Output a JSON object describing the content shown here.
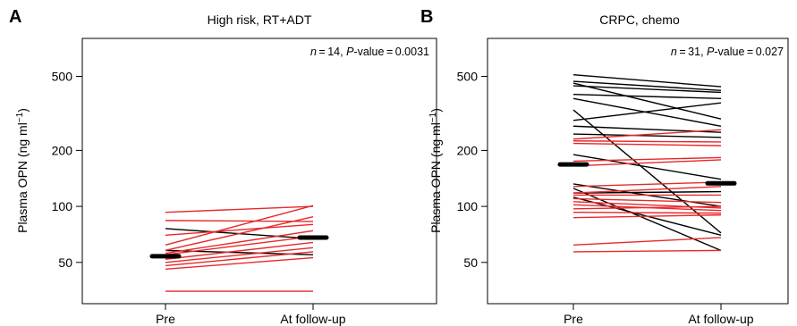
{
  "chart_data": [
    {
      "type": "line",
      "panel_label": "A",
      "title": "High risk, RT+ADT",
      "ylabel": "Plasma OPN (ng ml",
      "ylabel_sup": "−1",
      "ylabel_close": ")",
      "y_scale": "log",
      "ylim": [
        30,
        800
      ],
      "y_ticks": [
        50,
        100,
        200,
        500
      ],
      "categories": [
        "Pre",
        "At follow-up"
      ],
      "annotation": {
        "n_label": "n",
        "n_text": " = 14, ",
        "p_label": "P",
        "p_text": "-value = 0.0031"
      },
      "median": {
        "pre": 54,
        "post": 68
      },
      "series": [
        {
          "color": "#000000",
          "values": [
            58,
            55
          ]
        },
        {
          "color": "#000000",
          "values": [
            76,
            67
          ]
        },
        {
          "color": "#e8282a",
          "values": [
            93,
            100
          ]
        },
        {
          "color": "#e8282a",
          "values": [
            84,
            83
          ]
        },
        {
          "color": "#e8282a",
          "values": [
            70,
            80
          ]
        },
        {
          "color": "#e8282a",
          "values": [
            62,
            101
          ]
        },
        {
          "color": "#e8282a",
          "values": [
            58,
            88
          ]
        },
        {
          "color": "#e8282a",
          "values": [
            56,
            74
          ]
        },
        {
          "color": "#e8282a",
          "values": [
            55,
            69
          ]
        },
        {
          "color": "#e8282a",
          "values": [
            52,
            64
          ]
        },
        {
          "color": "#e8282a",
          "values": [
            50,
            60
          ]
        },
        {
          "color": "#e8282a",
          "values": [
            48,
            57
          ]
        },
        {
          "color": "#e8282a",
          "values": [
            46,
            53
          ]
        },
        {
          "color": "#e8282a",
          "values": [
            35,
            35
          ]
        }
      ]
    },
    {
      "type": "line",
      "panel_label": "B",
      "title": "CRPC, chemo",
      "ylabel": "Plasma OPN (ng ml",
      "ylabel_sup": "−1",
      "ylabel_close": ")",
      "y_scale": "log",
      "ylim": [
        30,
        800
      ],
      "y_ticks": [
        50,
        100,
        200,
        500
      ],
      "categories": [
        "Pre",
        "At follow-up"
      ],
      "annotation": {
        "n_label": "n",
        "n_text": " = 31, ",
        "p_label": "P",
        "p_text": "-value = 0.027"
      },
      "median": {
        "pre": 168,
        "post": 133
      },
      "series": [
        {
          "color": "#000000",
          "values": [
            510,
            440
          ]
        },
        {
          "color": "#000000",
          "values": [
            470,
            420
          ]
        },
        {
          "color": "#000000",
          "values": [
            460,
            295
          ]
        },
        {
          "color": "#000000",
          "values": [
            445,
            410
          ]
        },
        {
          "color": "#000000",
          "values": [
            400,
            380
          ]
        },
        {
          "color": "#000000",
          "values": [
            380,
            270
          ]
        },
        {
          "color": "#000000",
          "values": [
            330,
            72
          ]
        },
        {
          "color": "#000000",
          "values": [
            290,
            360
          ]
        },
        {
          "color": "#000000",
          "values": [
            270,
            250
          ]
        },
        {
          "color": "#000000",
          "values": [
            245,
            235
          ]
        },
        {
          "color": "#000000",
          "values": [
            190,
            140
          ]
        },
        {
          "color": "#000000",
          "values": [
            132,
            100
          ]
        },
        {
          "color": "#000000",
          "values": [
            125,
            58
          ]
        },
        {
          "color": "#000000",
          "values": [
            118,
            120
          ]
        },
        {
          "color": "#000000",
          "values": [
            112,
            70
          ]
        },
        {
          "color": "#e8282a",
          "values": [
            230,
            258
          ]
        },
        {
          "color": "#e8282a",
          "values": [
            225,
            222
          ]
        },
        {
          "color": "#e8282a",
          "values": [
            218,
            212
          ]
        },
        {
          "color": "#e8282a",
          "values": [
            175,
            183
          ]
        },
        {
          "color": "#e8282a",
          "values": [
            165,
            178
          ]
        },
        {
          "color": "#e8282a",
          "values": [
            128,
            135
          ]
        },
        {
          "color": "#e8282a",
          "values": [
            118,
            128
          ]
        },
        {
          "color": "#e8282a",
          "values": [
            115,
            115
          ]
        },
        {
          "color": "#e8282a",
          "values": [
            110,
            105
          ]
        },
        {
          "color": "#e8282a",
          "values": [
            106,
            98
          ]
        },
        {
          "color": "#e8282a",
          "values": [
            102,
            95
          ]
        },
        {
          "color": "#e8282a",
          "values": [
            97,
            100
          ]
        },
        {
          "color": "#e8282a",
          "values": [
            93,
            92
          ]
        },
        {
          "color": "#e8282a",
          "values": [
            87,
            90
          ]
        },
        {
          "color": "#e8282a",
          "values": [
            62,
            68
          ]
        },
        {
          "color": "#e8282a",
          "values": [
            57,
            58
          ]
        }
      ]
    }
  ]
}
